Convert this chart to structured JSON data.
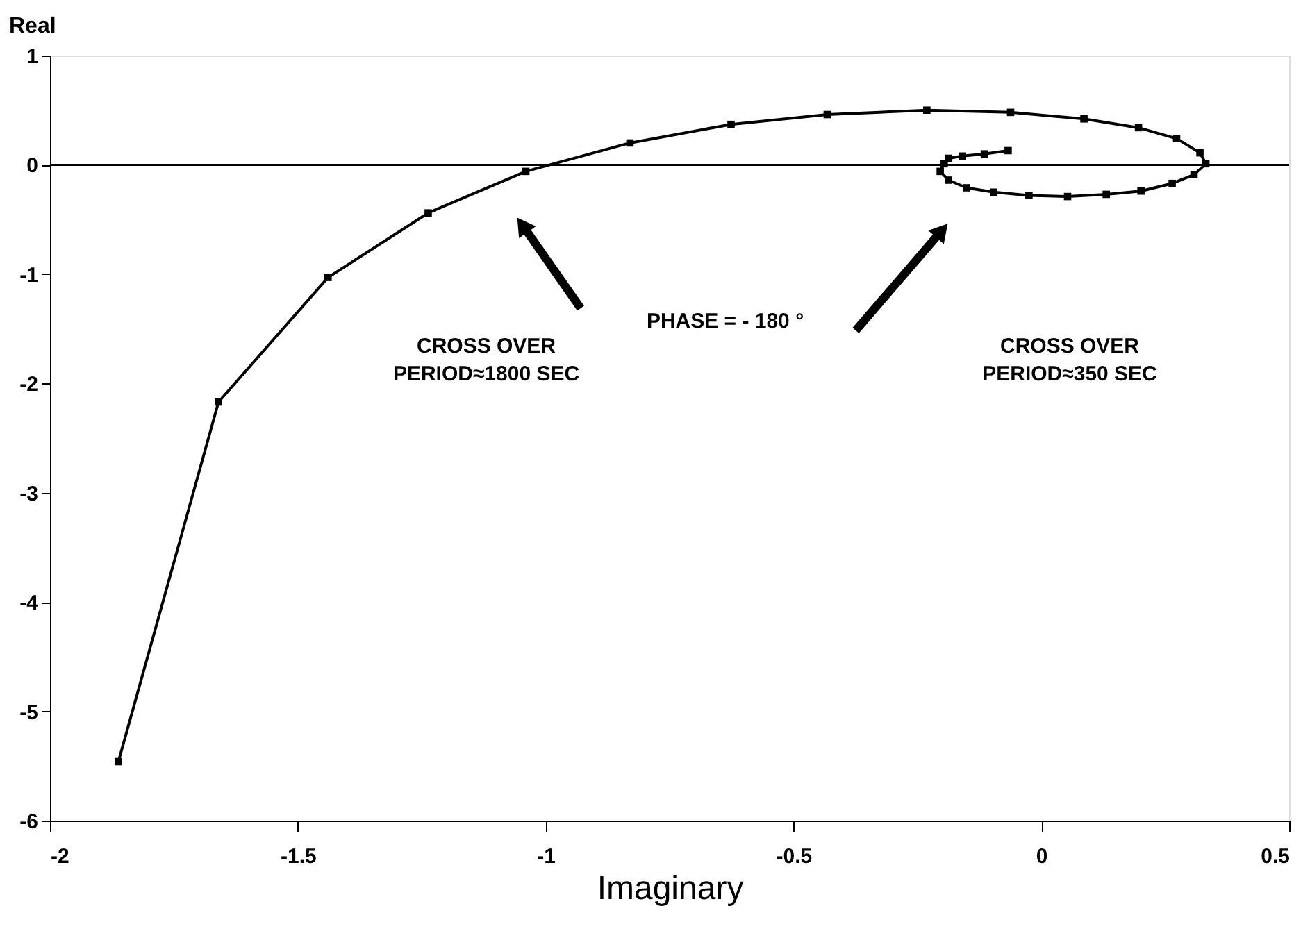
{
  "chart_data": {
    "type": "line",
    "xlabel": "Imaginary",
    "ylabel": "Real",
    "x": [
      -1.862,
      -1.66,
      -1.439,
      -1.237,
      -1.04,
      -0.83,
      -0.626,
      -0.432,
      -0.231,
      -0.062,
      0.086,
      0.196,
      0.273,
      0.32,
      0.332,
      0.308,
      0.264,
      0.201,
      0.131,
      0.053,
      -0.025,
      -0.096,
      -0.151,
      -0.187,
      -0.204,
      -0.196,
      -0.187,
      -0.159,
      -0.115,
      -0.067
    ],
    "series": [
      {
        "color": "#000000",
        "values": [
          -5.46,
          -2.17,
          -1.03,
          -0.44,
          -0.06,
          0.2,
          0.37,
          0.46,
          0.5,
          0.48,
          0.42,
          0.34,
          0.24,
          0.11,
          0.01,
          -0.09,
          -0.17,
          -0.24,
          -0.27,
          -0.29,
          -0.28,
          -0.25,
          -0.21,
          -0.14,
          -0.06,
          0.01,
          0.06,
          0.08,
          0.1,
          0.13
        ]
      }
    ],
    "xlim": [
      -2,
      0.5
    ],
    "xticks": [
      -2,
      -1.5,
      -1,
      -0.5,
      0,
      0.5
    ],
    "ylim": [
      -6,
      1
    ],
    "yticks": [
      -6,
      -5,
      -4,
      -3,
      -2,
      -1,
      0,
      1
    ],
    "ref_lines": [
      {
        "axis": "y",
        "value": 0
      }
    ],
    "annotations": [
      "CROSS OVER\nPERIOD≈1800 SEC",
      "PHASE = - 180 °",
      "CROSS OVER\nPERIOD≈350 SEC"
    ],
    "marker": "square",
    "line_style": "solid",
    "grid": false
  }
}
